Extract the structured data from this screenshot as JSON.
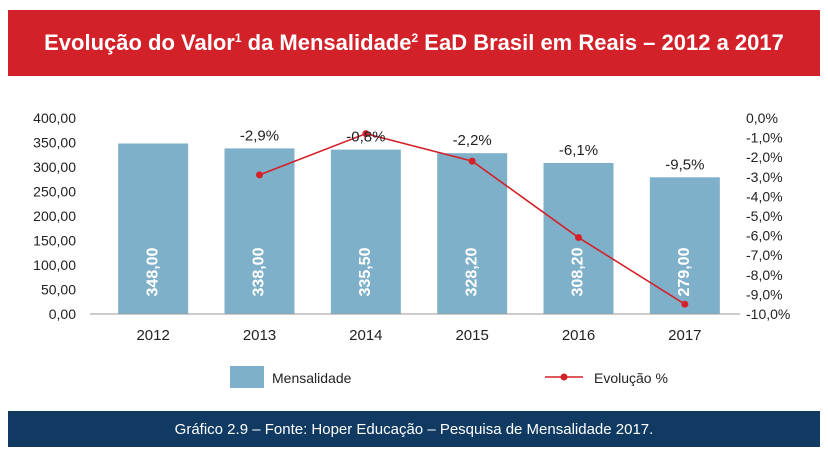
{
  "title": {
    "part1": "Evolução do Valor",
    "sup1": "1",
    "part2": " da Mensalidade",
    "sup2": "2",
    "part3": " EaD Brasil em Reais – 2012 a 2017"
  },
  "footer": "Gráfico 2.9 – Fonte: Hoper Educação – Pesquisa de Mensalidade 2017.",
  "colors": {
    "title_bg": "#d32129",
    "footer_bg": "#103a62",
    "bar": "#7fb0c9",
    "line": "#d32129",
    "text": "#222222"
  },
  "chart_data": {
    "type": "bar",
    "categories": [
      "2012",
      "2013",
      "2014",
      "2015",
      "2016",
      "2017"
    ],
    "series": [
      {
        "name": "Mensalidade",
        "type": "bar",
        "axis": "left",
        "values": [
          348.0,
          338.0,
          335.5,
          328.2,
          308.2,
          279.0
        ],
        "labels": [
          "348,00",
          "338,00",
          "335,50",
          "328,20",
          "308,20",
          "279,00"
        ]
      },
      {
        "name": "Evolução %",
        "type": "line",
        "axis": "right",
        "values": [
          null,
          -2.9,
          -0.8,
          -2.2,
          -6.1,
          -9.5
        ],
        "labels": [
          "",
          "-2,9%",
          "-0,8%",
          "-2,2%",
          "-6,1%",
          "-9,5%"
        ]
      }
    ],
    "y_left": {
      "range": [
        0,
        400
      ],
      "ticks": [
        "400,00",
        "350,00",
        "300,00",
        "250,00",
        "200,00",
        "150,00",
        "100,00",
        "50,00",
        "0,00"
      ]
    },
    "y_right": {
      "range": [
        -10,
        0
      ],
      "ticks": [
        "0,0%",
        "-1,0%",
        "-2,0%",
        "-3,0%",
        "-4,0%",
        "-5,0%",
        "-6,0%",
        "-7,0%",
        "-8,0%",
        "-9,0%",
        "-10,0%"
      ]
    },
    "grid": false,
    "legend_position": "bottom"
  }
}
